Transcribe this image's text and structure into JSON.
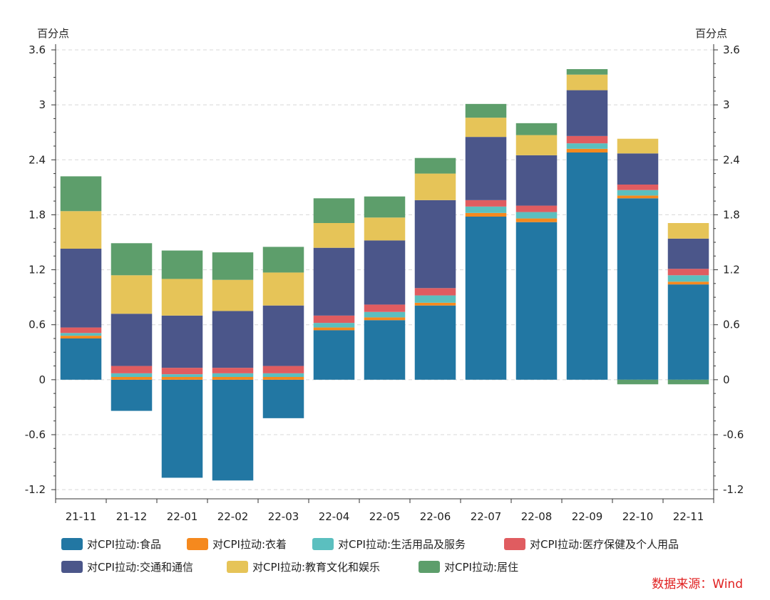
{
  "chart_data": {
    "type": "bar",
    "stacked": true,
    "categories": [
      "21-11",
      "21-12",
      "22-01",
      "22-02",
      "22-03",
      "22-04",
      "22-05",
      "22-06",
      "22-07",
      "22-08",
      "22-09",
      "22-10",
      "22-11"
    ],
    "y_unit_left": "百分点",
    "y_unit_right": "百分点",
    "ylim": [
      -1.3,
      3.6
    ],
    "yticks": [
      -1.2,
      -0.6,
      0,
      0.6,
      1.2,
      1.8,
      2.4,
      3,
      3.6
    ],
    "ytick_labels": [
      "-1.2",
      "-0.6",
      "0",
      "0.6",
      "1.2",
      "1.8",
      "2.4",
      "3",
      "3.6"
    ],
    "grid": true,
    "legend_position": "bottom",
    "series": [
      {
        "name": "对CPI拉动:食品",
        "color": "#2277a3",
        "values": [
          0.45,
          -0.34,
          -1.07,
          -1.1,
          -0.42,
          0.54,
          0.65,
          0.81,
          1.78,
          1.72,
          2.48,
          1.98,
          1.04
        ]
      },
      {
        "name": "对CPI拉动:衣着",
        "color": "#f5891e",
        "values": [
          0.03,
          0.03,
          0.03,
          0.03,
          0.03,
          0.03,
          0.03,
          0.03,
          0.04,
          0.04,
          0.04,
          0.03,
          0.03
        ]
      },
      {
        "name": "对CPI拉动:生活用品及服务",
        "color": "#5bbfbf",
        "values": [
          0.03,
          0.04,
          0.03,
          0.04,
          0.04,
          0.05,
          0.06,
          0.08,
          0.07,
          0.07,
          0.06,
          0.06,
          0.07
        ]
      },
      {
        "name": "对CPI拉动:医疗保健及个人用品",
        "color": "#e05c60",
        "values": [
          0.06,
          0.08,
          0.07,
          0.06,
          0.08,
          0.08,
          0.08,
          0.08,
          0.07,
          0.07,
          0.08,
          0.06,
          0.07
        ]
      },
      {
        "name": "对CPI拉动:交通和通信",
        "color": "#4b568a",
        "values": [
          0.86,
          0.57,
          0.57,
          0.62,
          0.66,
          0.74,
          0.7,
          0.96,
          0.69,
          0.55,
          0.5,
          0.34,
          0.33
        ]
      },
      {
        "name": "对CPI拉动:教育文化和娱乐",
        "color": "#e6c458",
        "values": [
          0.41,
          0.42,
          0.4,
          0.34,
          0.36,
          0.27,
          0.25,
          0.29,
          0.21,
          0.22,
          0.17,
          0.16,
          0.17
        ]
      },
      {
        "name": "对CPI拉动:居住",
        "color": "#5d9e6b",
        "values": [
          0.38,
          0.35,
          0.31,
          0.3,
          0.28,
          0.27,
          0.23,
          0.17,
          0.15,
          0.13,
          0.06,
          -0.05,
          -0.05
        ]
      }
    ]
  },
  "source_note": "数据来源：Wind"
}
